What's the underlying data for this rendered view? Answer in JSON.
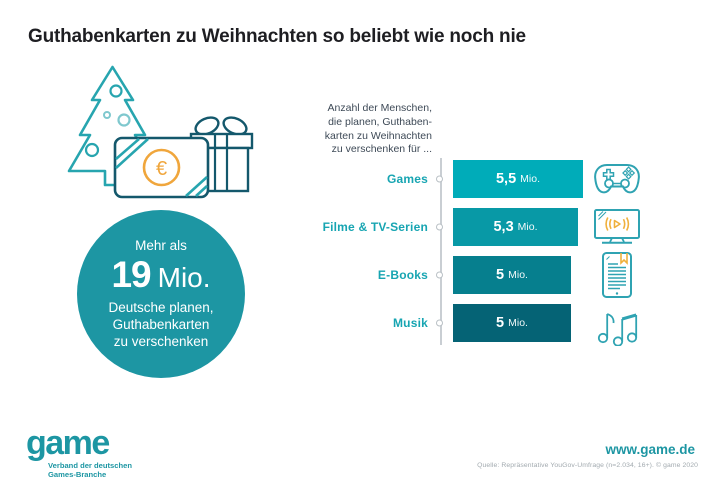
{
  "title": "Guthabenkarten zu Weihnachten so beliebt wie noch nie",
  "illustration": {
    "euro_symbol": "€"
  },
  "highlight": {
    "prefix": "Mehr als",
    "number": "19",
    "unit": "Mio.",
    "line1": "Deutsche planen,",
    "line2": "Guthabenkarten",
    "line3": "zu verschenken"
  },
  "chart_data": {
    "type": "bar",
    "orientation": "horizontal",
    "title": "Anzahl der Menschen, die planen, Guthabenkarten zu Weihnachten zu verschenken für ...",
    "title_lines": [
      "Anzahl der Menschen,",
      "die planen, Guthaben-",
      "karten zu Weihnachten",
      "zu verschenken für ..."
    ],
    "categories": [
      "Games",
      "Filme & TV-Serien",
      "E-Books",
      "Musik"
    ],
    "values": [
      5.5,
      5.3,
      5.0,
      5.0
    ],
    "unit": "Mio.",
    "value_labels": [
      {
        "num": "5,5",
        "unit": "Mio."
      },
      {
        "num": "5,3",
        "unit": "Mio."
      },
      {
        "num": "5",
        "unit": "Mio."
      },
      {
        "num": "5",
        "unit": "Mio."
      }
    ],
    "bar_colors": [
      "#00acb9",
      "#0899a6",
      "#067f8e",
      "#056375"
    ],
    "icons": [
      "game-controller-icon",
      "tv-play-icon",
      "e-reader-icon",
      "music-notes-icon"
    ],
    "xlim": [
      0,
      5.5
    ],
    "legend": "none",
    "grid": "off"
  },
  "footer": {
    "logo": "game",
    "tagline_line1": "Verband der deutschen",
    "tagline_line2": "Games-Branche",
    "website": "www.game.de",
    "source": "Quelle: Repräsentative YouGov-Umfrage (n=2.034, 16+). © game 2020"
  },
  "colors": {
    "accent_teal": "#1d96a3",
    "label_teal": "#17a5b2",
    "title_text": "#1e1e22",
    "body_text": "#3e4a57",
    "line_gray": "#c9ced3",
    "orange": "#f0a63c",
    "icon_teal": "#2fa3b2",
    "outline_dark": "#14586c"
  }
}
